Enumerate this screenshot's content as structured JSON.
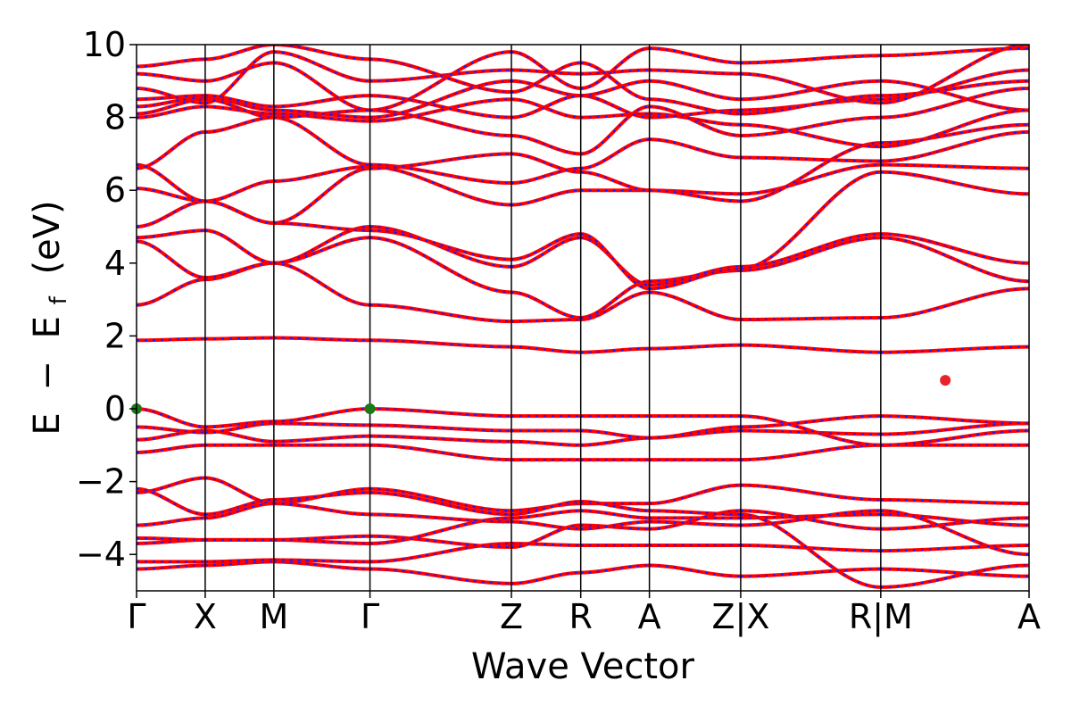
{
  "chart_data": {
    "type": "line",
    "title": "",
    "xlabel": "Wave Vector",
    "ylabel_parts": {
      "e": "E",
      "minus": "−",
      "ef_main": "E",
      "ef_sub": "f",
      "unit": "(eV)"
    },
    "ylim": [
      -5,
      10
    ],
    "yticks": [
      {
        "value": -4,
        "label": "−4"
      },
      {
        "value": -2,
        "label": "−2"
      },
      {
        "value": 0,
        "label": "0"
      },
      {
        "value": 2,
        "label": "2"
      },
      {
        "value": 4,
        "label": "4"
      },
      {
        "value": 6,
        "label": "6"
      },
      {
        "value": 8,
        "label": "8"
      },
      {
        "value": 10,
        "label": "10"
      }
    ],
    "xlim": [
      0,
      13
    ],
    "kpoints": [
      {
        "x": 0.0,
        "label": "Γ"
      },
      {
        "x": 1.0,
        "label": "X"
      },
      {
        "x": 2.0,
        "label": "M"
      },
      {
        "x": 3.4,
        "label": "Γ"
      },
      {
        "x": 5.46,
        "label": "Z"
      },
      {
        "x": 6.47,
        "label": "R"
      },
      {
        "x": 7.47,
        "label": "A"
      },
      {
        "x": 8.8,
        "label": "Z|X"
      },
      {
        "x": 10.84,
        "label": "R|M"
      },
      {
        "x": 13.0,
        "label": "A"
      }
    ],
    "segments": [
      {
        "from": 0.0,
        "to": 1.0,
        "bands": [
          [
            -4.4,
            -4.3
          ],
          [
            -4.2,
            -4.2
          ],
          [
            -3.7,
            -3.6
          ],
          [
            -3.55,
            -3.6
          ],
          [
            -3.2,
            -3.0
          ],
          [
            -2.3,
            -1.9
          ],
          [
            -2.2,
            -2.9
          ],
          [
            -1.2,
            -1.0
          ],
          [
            -0.85,
            -0.6
          ],
          [
            -0.5,
            -0.65
          ],
          [
            0.0,
            -0.5
          ],
          [
            1.88,
            1.92
          ],
          [
            2.85,
            3.55
          ],
          [
            4.6,
            3.6
          ],
          [
            4.7,
            4.9
          ],
          [
            5.0,
            5.7
          ],
          [
            6.05,
            5.7
          ],
          [
            6.6,
            7.6
          ],
          [
            6.7,
            5.7
          ],
          [
            8.0,
            8.3
          ],
          [
            8.1,
            8.5
          ],
          [
            8.3,
            8.55
          ],
          [
            8.5,
            8.6
          ],
          [
            8.8,
            8.4
          ],
          [
            9.2,
            9.0
          ],
          [
            9.4,
            9.6
          ]
        ]
      },
      {
        "from": 1.0,
        "to": 2.0,
        "bands": [
          [
            -4.3,
            -4.2
          ],
          [
            -4.2,
            -4.15
          ],
          [
            -3.6,
            -3.6
          ],
          [
            -3.6,
            -3.6
          ],
          [
            -3.0,
            -2.6
          ],
          [
            -1.9,
            -2.6
          ],
          [
            -2.9,
            -2.5
          ],
          [
            -1.0,
            -1.0
          ],
          [
            -0.6,
            -0.9
          ],
          [
            -0.65,
            -0.4
          ],
          [
            -0.5,
            -0.35
          ],
          [
            1.92,
            1.95
          ],
          [
            3.55,
            4.0
          ],
          [
            3.6,
            4.0
          ],
          [
            4.9,
            4.0
          ],
          [
            5.7,
            5.1
          ],
          [
            5.7,
            6.25
          ],
          [
            7.6,
            8.0
          ],
          [
            5.7,
            5.1
          ],
          [
            8.3,
            8.1
          ],
          [
            8.5,
            8.0
          ],
          [
            8.55,
            8.2
          ],
          [
            8.6,
            8.3
          ],
          [
            8.4,
            9.8
          ],
          [
            9.0,
            9.5
          ],
          [
            9.6,
            10.0
          ]
        ]
      },
      {
        "from": 2.0,
        "to": 3.4,
        "bands": [
          [
            -4.2,
            -4.4
          ],
          [
            -4.15,
            -4.2
          ],
          [
            -3.6,
            -3.7
          ],
          [
            -3.6,
            -3.5
          ],
          [
            -2.6,
            -2.2
          ],
          [
            -2.6,
            -2.9
          ],
          [
            -2.5,
            -2.3
          ],
          [
            -1.0,
            -1.0
          ],
          [
            -0.9,
            -0.75
          ],
          [
            -0.4,
            -0.45
          ],
          [
            -0.35,
            0.0
          ],
          [
            1.95,
            1.88
          ],
          [
            4.0,
            2.85
          ],
          [
            4.0,
            4.7
          ],
          [
            4.0,
            5.0
          ],
          [
            5.1,
            4.9
          ],
          [
            6.25,
            6.65
          ],
          [
            8.0,
            6.7
          ],
          [
            5.1,
            6.6
          ],
          [
            8.1,
            7.9
          ],
          [
            8.0,
            8.2
          ],
          [
            8.2,
            8.0
          ],
          [
            8.3,
            8.6
          ],
          [
            9.8,
            9.0
          ],
          [
            9.5,
            8.2
          ],
          [
            10.0,
            9.6
          ]
        ]
      },
      {
        "from": 3.4,
        "to": 5.46,
        "bands": [
          [
            -4.4,
            -4.8
          ],
          [
            -4.2,
            -3.7
          ],
          [
            -3.7,
            -3.0
          ],
          [
            -3.5,
            -3.8
          ],
          [
            -2.2,
            -2.8
          ],
          [
            -2.9,
            -3.1
          ],
          [
            -2.3,
            -2.9
          ],
          [
            -1.0,
            -1.4
          ],
          [
            -0.75,
            -0.9
          ],
          [
            -0.45,
            -0.6
          ],
          [
            0.0,
            -0.2
          ],
          [
            1.88,
            1.7
          ],
          [
            2.85,
            2.4
          ],
          [
            4.7,
            3.2
          ],
          [
            5.0,
            3.9
          ],
          [
            4.9,
            4.1
          ],
          [
            6.65,
            5.6
          ],
          [
            6.7,
            6.2
          ],
          [
            6.6,
            7.0
          ],
          [
            7.9,
            8.5
          ],
          [
            8.2,
            7.5
          ],
          [
            8.0,
            9.0
          ],
          [
            8.6,
            8.0
          ],
          [
            9.0,
            9.3
          ],
          [
            8.2,
            9.8
          ],
          [
            9.6,
            8.7
          ]
        ]
      },
      {
        "from": 5.46,
        "to": 6.47,
        "bands": [
          [
            -4.8,
            -4.5
          ],
          [
            -3.7,
            -3.75
          ],
          [
            -3.0,
            -2.8
          ],
          [
            -3.8,
            -3.2
          ],
          [
            -2.8,
            -2.6
          ],
          [
            -3.1,
            -3.3
          ],
          [
            -2.9,
            -2.55
          ],
          [
            -1.4,
            -1.4
          ],
          [
            -0.9,
            -1.0
          ],
          [
            -0.6,
            -0.6
          ],
          [
            -0.2,
            -0.2
          ],
          [
            1.7,
            1.55
          ],
          [
            2.4,
            2.45
          ],
          [
            3.2,
            2.5
          ],
          [
            3.9,
            4.7
          ],
          [
            4.1,
            4.8
          ],
          [
            5.6,
            6.0
          ],
          [
            6.2,
            6.6
          ],
          [
            7.0,
            6.5
          ],
          [
            8.5,
            8.0
          ],
          [
            7.5,
            7.0
          ],
          [
            9.0,
            8.6
          ],
          [
            8.0,
            8.6
          ],
          [
            9.3,
            9.2
          ],
          [
            9.8,
            8.8
          ],
          [
            8.7,
            9.5
          ]
        ]
      },
      {
        "from": 6.47,
        "to": 7.47,
        "bands": [
          [
            -4.5,
            -4.3
          ],
          [
            -3.75,
            -3.75
          ],
          [
            -2.8,
            -3.0
          ],
          [
            -3.2,
            -3.3
          ],
          [
            -2.6,
            -2.6
          ],
          [
            -3.3,
            -3.1
          ],
          [
            -2.55,
            -2.8
          ],
          [
            -1.4,
            -1.4
          ],
          [
            -1.0,
            -0.8
          ],
          [
            -0.6,
            -0.8
          ],
          [
            -0.2,
            -0.2
          ],
          [
            1.55,
            1.65
          ],
          [
            2.45,
            3.2
          ],
          [
            2.5,
            3.5
          ],
          [
            4.7,
            3.4
          ],
          [
            4.8,
            3.3
          ],
          [
            6.0,
            6.0
          ],
          [
            6.6,
            7.4
          ],
          [
            6.5,
            6.0
          ],
          [
            8.0,
            8.1
          ],
          [
            7.0,
            8.3
          ],
          [
            8.6,
            8.0
          ],
          [
            8.6,
            9.0
          ],
          [
            9.2,
            9.3
          ],
          [
            8.8,
            9.9
          ],
          [
            9.5,
            8.5
          ]
        ]
      },
      {
        "from": 7.47,
        "to": 8.8,
        "bands": [
          [
            -4.3,
            -4.6
          ],
          [
            -3.75,
            -3.75
          ],
          [
            -3.0,
            -3.0
          ],
          [
            -3.3,
            -2.8
          ],
          [
            -2.6,
            -2.1
          ],
          [
            -3.1,
            -3.2
          ],
          [
            -2.8,
            -2.9
          ],
          [
            -1.4,
            -1.4
          ],
          [
            -0.8,
            -0.6
          ],
          [
            -0.8,
            -0.5
          ],
          [
            -0.2,
            -0.2
          ],
          [
            1.65,
            1.75
          ],
          [
            3.2,
            2.45
          ],
          [
            3.5,
            3.8
          ],
          [
            3.4,
            3.9
          ],
          [
            3.3,
            3.85
          ],
          [
            6.0,
            5.9
          ],
          [
            7.4,
            6.9
          ],
          [
            6.0,
            5.7
          ],
          [
            8.1,
            7.8
          ],
          [
            8.3,
            7.5
          ],
          [
            8.0,
            8.2
          ],
          [
            9.0,
            8.5
          ],
          [
            9.3,
            9.2
          ],
          [
            9.9,
            9.5
          ],
          [
            8.5,
            8.1
          ]
        ]
      },
      {
        "from": 8.8,
        "to": 10.84,
        "bands": [
          [
            -4.6,
            -4.4
          ],
          [
            -3.75,
            -3.9
          ],
          [
            -3.0,
            -2.9
          ],
          [
            -2.8,
            -3.3
          ],
          [
            -2.1,
            -2.5
          ],
          [
            -3.2,
            -2.8
          ],
          [
            -2.9,
            -4.9
          ],
          [
            -1.4,
            -1.0
          ],
          [
            -0.6,
            -0.7
          ],
          [
            -0.5,
            -0.2
          ],
          [
            -0.2,
            -1.0
          ],
          [
            1.75,
            1.55
          ],
          [
            2.45,
            2.5
          ],
          [
            3.8,
            4.7
          ],
          [
            3.9,
            4.8
          ],
          [
            3.85,
            6.5
          ],
          [
            5.9,
            6.7
          ],
          [
            6.9,
            6.8
          ],
          [
            5.7,
            7.3
          ],
          [
            7.8,
            7.2
          ],
          [
            7.5,
            8.0
          ],
          [
            8.2,
            8.5
          ],
          [
            8.5,
            9.0
          ],
          [
            9.2,
            8.4
          ],
          [
            9.5,
            9.7
          ],
          [
            8.1,
            8.6
          ]
        ]
      },
      {
        "from": 10.84,
        "to": 13.0,
        "bands": [
          [
            -4.4,
            -4.6
          ],
          [
            -3.9,
            -3.75
          ],
          [
            -2.9,
            -3.2
          ],
          [
            -3.3,
            -3.0
          ],
          [
            -2.5,
            -2.6
          ],
          [
            -2.8,
            -4.0
          ],
          [
            -4.9,
            -4.3
          ],
          [
            -1.0,
            -1.0
          ],
          [
            -0.7,
            -0.4
          ],
          [
            -0.2,
            -0.4
          ],
          [
            -1.0,
            -0.6
          ],
          [
            1.55,
            1.7
          ],
          [
            2.5,
            3.3
          ],
          [
            4.7,
            3.5
          ],
          [
            4.8,
            4.0
          ],
          [
            6.5,
            5.9
          ],
          [
            6.7,
            6.6
          ],
          [
            6.8,
            7.6
          ],
          [
            7.3,
            7.8
          ],
          [
            7.2,
            8.2
          ],
          [
            8.0,
            8.8
          ],
          [
            8.5,
            9.3
          ],
          [
            9.0,
            8.2
          ],
          [
            8.4,
            10.0
          ],
          [
            9.7,
            9.9
          ],
          [
            8.6,
            9.0
          ]
        ]
      }
    ],
    "markers": [
      {
        "x": 0.0,
        "y": 0.0,
        "color": "#1a7a1a",
        "kind": "vbm"
      },
      {
        "x": 3.4,
        "y": 0.0,
        "color": "#1a7a1a",
        "kind": "vbm"
      },
      {
        "x": 11.78,
        "y": 0.78,
        "color": "#e8232a",
        "kind": "cbm"
      }
    ],
    "colors": {
      "band_main": "#ff0000",
      "band_dash": "#1a1aff",
      "axis": "#000000"
    }
  }
}
